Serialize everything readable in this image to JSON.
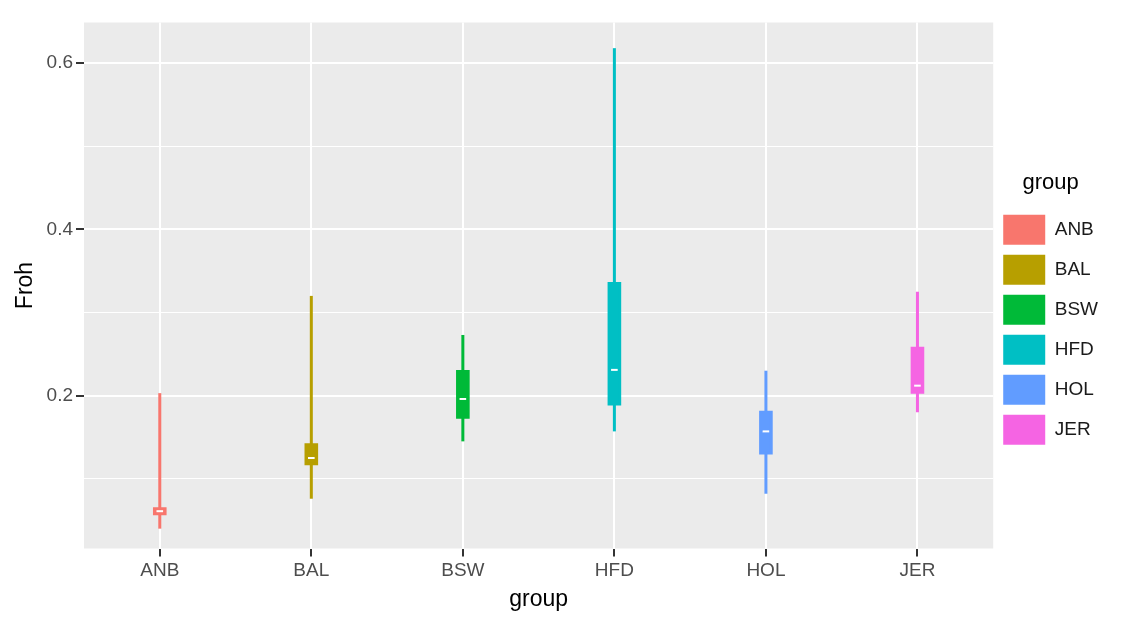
{
  "chart_data": {
    "type": "box",
    "xlabel": "group",
    "ylabel": "Froh",
    "legend_title": "group",
    "categories": [
      "ANB",
      "BAL",
      "BSW",
      "HFD",
      "HOL",
      "JER"
    ],
    "series": [
      {
        "name": "ANB",
        "color": "#f8766d",
        "boxes": [
          {
            "low": 0.04,
            "q1": 0.058,
            "median": 0.061,
            "q3": 0.064,
            "high": 0.203
          },
          null,
          null,
          null,
          null,
          null
        ]
      },
      {
        "name": "BAL",
        "color": "#b79f00",
        "boxes": [
          null,
          {
            "low": 0.076,
            "q1": 0.118,
            "median": 0.125,
            "q3": 0.141,
            "high": 0.32
          },
          null,
          null,
          null,
          null
        ]
      },
      {
        "name": "BSW",
        "color": "#00ba38",
        "boxes": [
          null,
          null,
          {
            "low": 0.145,
            "q1": 0.174,
            "median": 0.196,
            "q3": 0.229,
            "high": 0.273
          },
          null,
          null,
          null
        ]
      },
      {
        "name": "HFD",
        "color": "#00bfc4",
        "boxes": [
          null,
          null,
          null,
          {
            "low": 0.157,
            "q1": 0.19,
            "median": 0.231,
            "q3": 0.335,
            "high": 0.618
          },
          null,
          null
        ]
      },
      {
        "name": "HOL",
        "color": "#619cff",
        "boxes": [
          null,
          null,
          null,
          null,
          {
            "low": 0.082,
            "q1": 0.131,
            "median": 0.157,
            "q3": 0.18,
            "high": 0.23
          },
          null
        ]
      },
      {
        "name": "JER",
        "color": "#f564e3",
        "boxes": [
          null,
          null,
          null,
          null,
          null,
          {
            "low": 0.18,
            "q1": 0.204,
            "median": 0.212,
            "q3": 0.257,
            "high": 0.325
          }
        ]
      }
    ],
    "ylim": [
      0.016,
      0.649
    ],
    "yticks": [
      {
        "value": 0.1,
        "label": null
      },
      0.2,
      {
        "value": 0.3,
        "label": null
      },
      0.4,
      {
        "value": 0.5,
        "label": null
      },
      0.6
    ],
    "grid": true,
    "legend": "right"
  }
}
